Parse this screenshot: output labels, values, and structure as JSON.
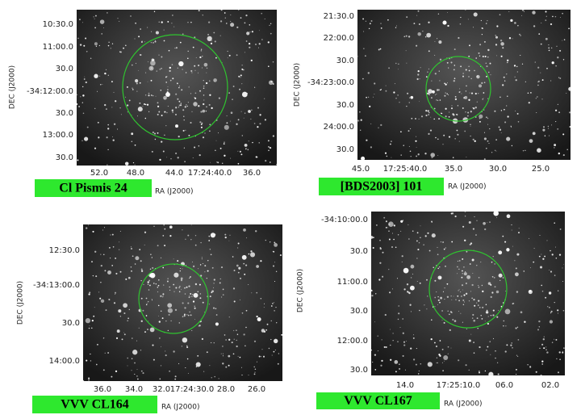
{
  "panels": [
    {
      "label": "Cl Pismis 24",
      "x_axis_label": "RA (J2000)",
      "y_axis_label": "DEC (J2000)",
      "yticks": [
        "10:30.0",
        "11:00.0",
        "30.0",
        "-34:12:00.0",
        "30.0",
        "13:00.0",
        "30.0"
      ],
      "xticks": [
        "52.0",
        "48.0",
        "44.0",
        "17:24:40.0",
        "36.0"
      ]
    },
    {
      "label": "[BDS2003] 101",
      "x_axis_label": "RA (J2000)",
      "y_axis_label": "DEC (J2000)",
      "yticks": [
        "21:30.0",
        "22:00.0",
        "30.0",
        "-34:23:00.0",
        "30.0",
        "24:00.0",
        "30.0"
      ],
      "xticks": [
        "45.0",
        "17:25:40.0",
        "35.0",
        "30.0",
        "25.0"
      ]
    },
    {
      "label": "VVV CL164",
      "x_axis_label": "RA (J2000)",
      "y_axis_label": "DEC (J2000)",
      "yticks": [
        "12:30.0",
        "-34:13:00.0",
        "30.0",
        "14:00.0"
      ],
      "xticks": [
        "36.0",
        "34.0",
        "32.0",
        "17:24:30.0",
        "28.0",
        "26.0"
      ]
    },
    {
      "label": "VVV CL167",
      "x_axis_label": "RA (J2000)",
      "y_axis_label": "DEC (J2000)",
      "yticks": [
        "-34:10:00.0",
        "30.0",
        "11:00.0",
        "30.0",
        "12:00.0",
        "30.0"
      ],
      "xticks": [
        "14.0",
        "17:25:10.0",
        "06.0",
        "02.0"
      ]
    }
  ]
}
